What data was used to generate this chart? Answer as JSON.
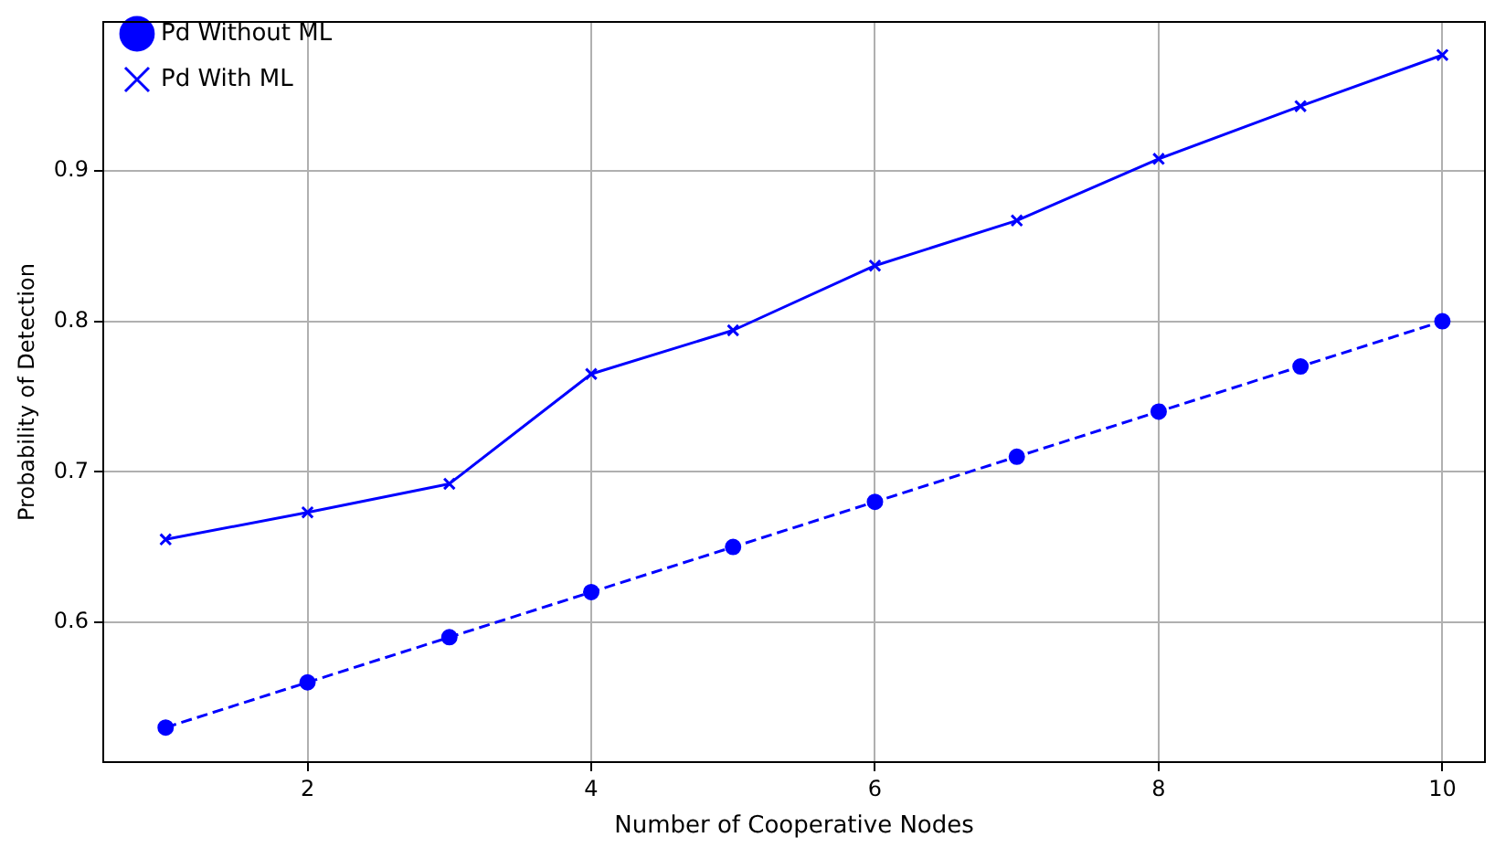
{
  "chart_data": {
    "type": "line",
    "xlabel": "Number of Cooperative Nodes",
    "ylabel": "Probability of Detection",
    "x": [
      1,
      2,
      3,
      4,
      5,
      6,
      7,
      8,
      9,
      10
    ],
    "series": [
      {
        "name": "Pd Without ML",
        "color": "#0000ff",
        "marker": "circle",
        "line_style": "dashed",
        "values": [
          0.53,
          0.56,
          0.59,
          0.62,
          0.65,
          0.68,
          0.71,
          0.74,
          0.77,
          0.8
        ]
      },
      {
        "name": "Pd With ML",
        "color": "#0000ff",
        "marker": "cross",
        "line_style": "solid",
        "values": [
          0.655,
          0.673,
          0.692,
          0.765,
          0.794,
          0.837,
          0.867,
          0.908,
          0.943,
          0.977
        ]
      }
    ],
    "xlim": [
      0.56,
      10.3
    ],
    "xticks": [
      2,
      4,
      6,
      8,
      10
    ],
    "ylim": [
      0.507,
      0.999
    ],
    "yticks": [
      0.6,
      0.7,
      0.8,
      0.9
    ],
    "grid": true,
    "legend": "top left"
  }
}
